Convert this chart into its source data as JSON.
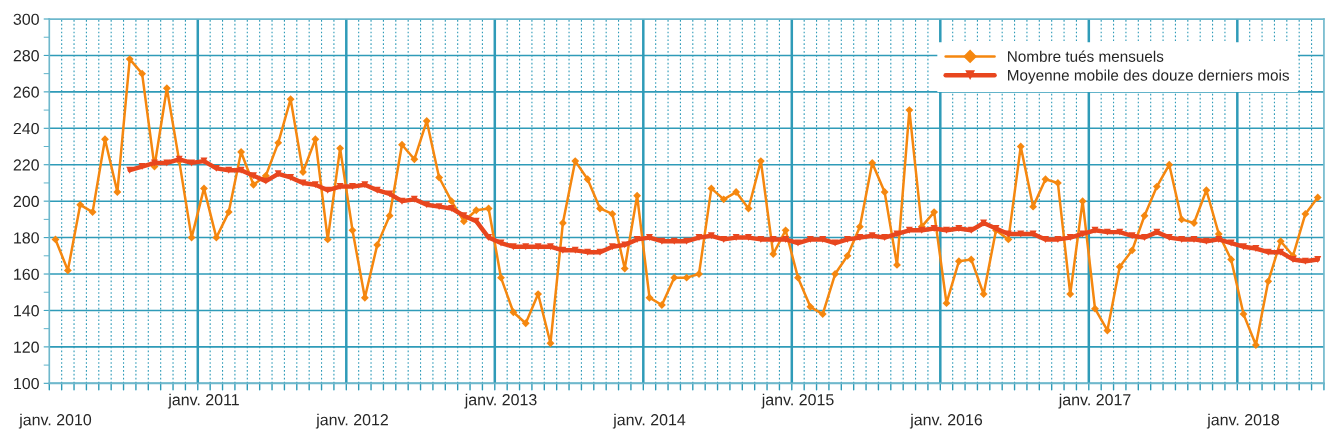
{
  "chart_data": {
    "type": "line",
    "categories": [
      "janv. 2010",
      null,
      null,
      null,
      null,
      null,
      null,
      null,
      null,
      null,
      null,
      null,
      "janv. 2011",
      null,
      null,
      null,
      null,
      null,
      null,
      null,
      null,
      null,
      null,
      null,
      "janv. 2012",
      null,
      null,
      null,
      null,
      null,
      null,
      null,
      null,
      null,
      null,
      null,
      "janv. 2013",
      null,
      null,
      null,
      null,
      null,
      null,
      null,
      null,
      null,
      null,
      null,
      "janv. 2014",
      null,
      null,
      null,
      null,
      null,
      null,
      null,
      null,
      null,
      null,
      null,
      "janv. 2015",
      null,
      null,
      null,
      null,
      null,
      null,
      null,
      null,
      null,
      null,
      null,
      "janv. 2016",
      null,
      null,
      null,
      null,
      null,
      null,
      null,
      null,
      null,
      null,
      null,
      "janv. 2017",
      null,
      null,
      null,
      null,
      null,
      null,
      null,
      null,
      null,
      null,
      null,
      "janv. 2018",
      null,
      null,
      null,
      null,
      null,
      null
    ],
    "series": [
      {
        "name": "Nombre tués mensuels",
        "color": "#f5870f",
        "marker": "diamond",
        "values": [
          179,
          162,
          198,
          194,
          234,
          205,
          278,
          270,
          219,
          262,
          222,
          180,
          207,
          180,
          194,
          227,
          209,
          214,
          232,
          256,
          216,
          234,
          179,
          229,
          184,
          147,
          176,
          192,
          231,
          223,
          244,
          213,
          200,
          189,
          195,
          196,
          158,
          139,
          133,
          149,
          122,
          188,
          222,
          212,
          196,
          193,
          163,
          203,
          147,
          143,
          158,
          158,
          160,
          207,
          201,
          205,
          196,
          222,
          171,
          184,
          158,
          142,
          138,
          160,
          170,
          186,
          221,
          205,
          165,
          250,
          186,
          194,
          144,
          167,
          168,
          149,
          184,
          179,
          230,
          197,
          212,
          210,
          149,
          200,
          141,
          129,
          164,
          173,
          192,
          208,
          220,
          190,
          188,
          206,
          182,
          168,
          138,
          121,
          156,
          178,
          170,
          193,
          202
        ]
      },
      {
        "name": "Moyenne mobile des douze derniers mois",
        "color": "#e8461e",
        "marker": "triangle",
        "values": [
          null,
          null,
          null,
          null,
          null,
          null,
          217,
          219,
          221,
          221,
          223,
          221,
          222,
          218,
          217,
          217,
          214,
          211,
          215,
          213,
          210,
          209,
          206,
          208,
          208,
          209,
          206,
          204,
          200,
          201,
          198,
          197,
          196,
          192,
          189,
          180,
          177,
          175,
          175,
          175,
          175,
          173,
          173,
          172,
          172,
          175,
          176,
          179,
          180,
          178,
          178,
          178,
          180,
          181,
          179,
          180,
          180,
          179,
          179,
          179,
          177,
          179,
          179,
          177,
          179,
          180,
          181,
          180,
          182,
          184,
          184,
          185,
          184,
          185,
          184,
          188,
          185,
          182,
          182,
          182,
          179,
          179,
          180,
          182,
          184,
          183,
          183,
          181,
          180,
          183,
          180,
          179,
          179,
          178,
          179,
          177,
          175,
          174,
          172,
          172,
          168,
          167,
          168
        ]
      }
    ],
    "ylim": [
      100,
      300
    ],
    "yticks": [
      100,
      {
        "value": 110,
        "label": null
      },
      120,
      {
        "value": 130,
        "label": null
      },
      140,
      {
        "value": 150,
        "label": null
      },
      160,
      {
        "value": 170,
        "label": null
      },
      180,
      {
        "value": 190,
        "label": null
      },
      200,
      {
        "value": 210,
        "label": null
      },
      220,
      {
        "value": 230,
        "label": null
      },
      240,
      {
        "value": 250,
        "label": null
      },
      260,
      {
        "value": 270,
        "label": null
      },
      280,
      {
        "value": 290,
        "label": null
      },
      300
    ],
    "grid": true,
    "legend": "top right"
  }
}
